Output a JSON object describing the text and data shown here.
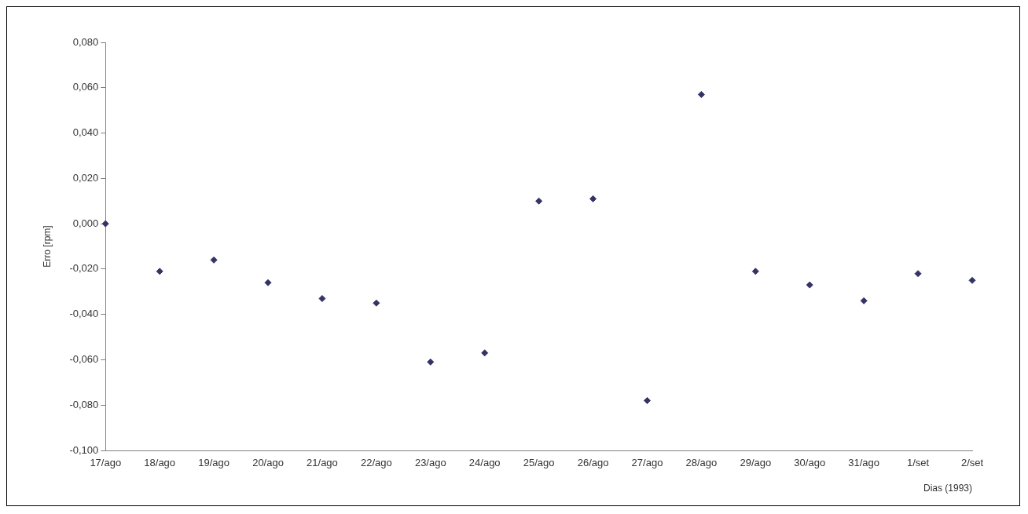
{
  "chart_data": {
    "type": "scatter",
    "ylabel": "Erro [rpm]",
    "xlabel": "Dias (1993)",
    "categories": [
      "17/ago",
      "18/ago",
      "19/ago",
      "20/ago",
      "21/ago",
      "22/ago",
      "23/ago",
      "24/ago",
      "25/ago",
      "26/ago",
      "27/ago",
      "28/ago",
      "29/ago",
      "30/ago",
      "31/ago",
      "1/set",
      "2/set"
    ],
    "values": [
      0.0,
      -0.021,
      -0.016,
      -0.026,
      -0.033,
      -0.035,
      -0.061,
      -0.057,
      0.01,
      0.011,
      -0.078,
      0.057,
      -0.021,
      -0.027,
      -0.034,
      -0.022,
      -0.025
    ],
    "color": "#333366",
    "marker": "diamond",
    "grid": false,
    "legend": false,
    "ylim": [
      -0.1,
      0.08
    ],
    "yticks": [
      {
        "value": -0.1,
        "label": "-0,100"
      },
      {
        "value": -0.08,
        "label": "-0,080"
      },
      {
        "value": -0.06,
        "label": "-0,060"
      },
      {
        "value": -0.04,
        "label": "-0,040"
      },
      {
        "value": -0.02,
        "label": "-0,020"
      },
      {
        "value": 0,
        "label": "0,000"
      },
      {
        "value": 0.02,
        "label": "0,020"
      },
      {
        "value": 0.04,
        "label": "0,040"
      },
      {
        "value": 0.06,
        "label": "0,060"
      },
      {
        "value": 0.08,
        "label": "0,080"
      }
    ]
  }
}
